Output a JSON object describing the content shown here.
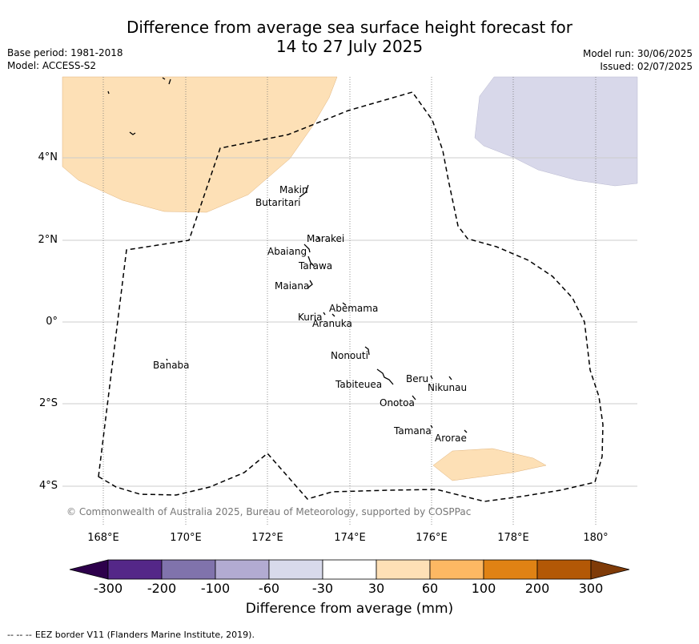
{
  "header": {
    "title_line1": "Difference from average sea surface height forecast for",
    "title_line2": "14 to 27 July 2025",
    "base_period": "Base period: 1981-2018",
    "model": "Model: ACCESS-S2",
    "model_run": "Model run: 30/06/2025",
    "issued": "Issued: 02/07/2025"
  },
  "map": {
    "lat_labels": [
      "4°N",
      "2°N",
      "0°",
      "2°S",
      "4°S"
    ],
    "lon_labels": [
      "168°E",
      "170°E",
      "172°E",
      "174°E",
      "176°E",
      "178°E",
      "180°"
    ],
    "islands": [
      "Makin",
      "Butaritari",
      "Marakei",
      "Abaiang",
      "Tarawa",
      "Maiana",
      "Abemama",
      "Kuria",
      "Aranuka",
      "Banaba",
      "Nonouti",
      "Beru",
      "Nikunau",
      "Tabiteuea",
      "Onotoa",
      "Tamana",
      "Arorae"
    ],
    "copyright": "© Commonwealth of Australia 2025, Bureau of Meteorology, supported by COSPPac",
    "colors": {
      "positive_30_60": "#fde0b6",
      "negative_minus60_minus30": "#d8d8ea",
      "land": "#000000",
      "eez_border": "#000000"
    }
  },
  "colorbar": {
    "title": "Difference from average (mm)",
    "ticks": [
      "-300",
      "-200",
      "-100",
      "-60",
      "-30",
      "30",
      "60",
      "100",
      "200",
      "300"
    ],
    "colors": [
      "#2d004b",
      "#542788",
      "#8073ac",
      "#b2abd2",
      "#d8daeb",
      "#ffffff",
      "#fee0b6",
      "#fdb863",
      "#e08214",
      "#b35806",
      "#7f3b08"
    ]
  },
  "footer": {
    "dashes": "--  --  --",
    "text": "EEZ border V11 (Flanders Marine Institute, 2019)."
  }
}
